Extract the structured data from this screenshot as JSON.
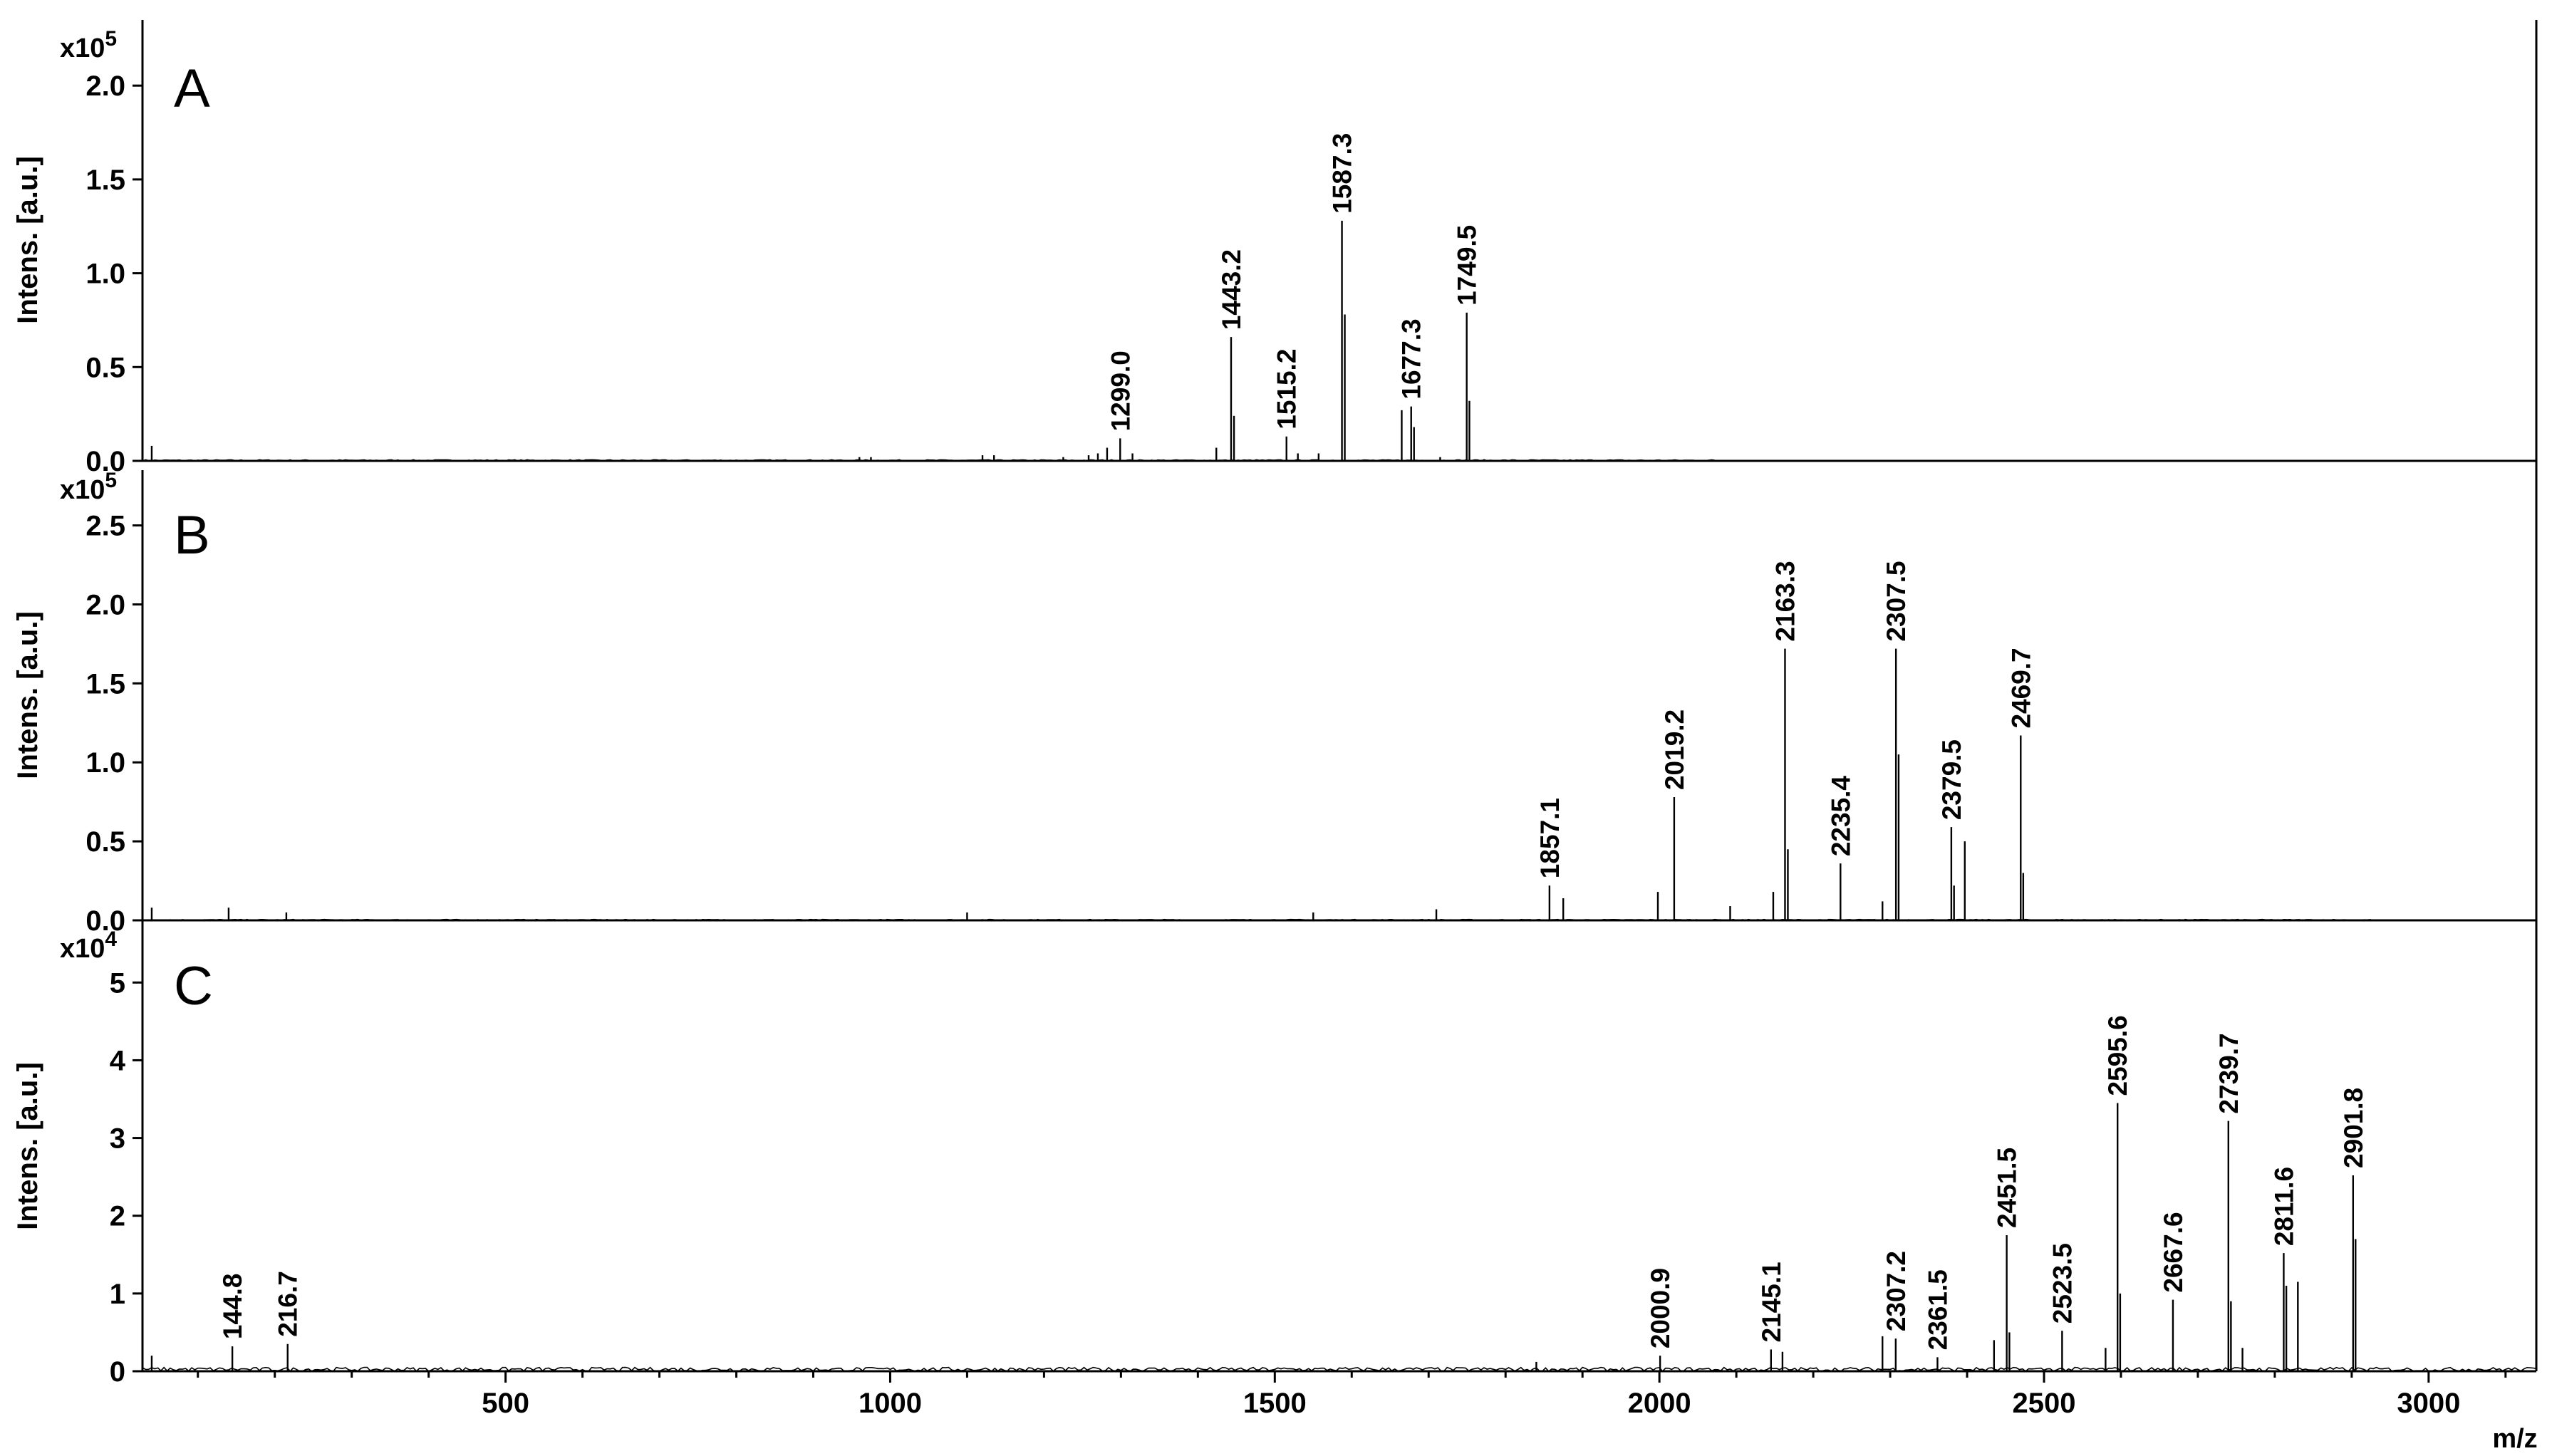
{
  "chart_data": [
    {
      "type": "line",
      "panel": "A",
      "ylabel": "Intens. [a.u.]",
      "multiplier": "x10",
      "multiplier_exp": "5",
      "yticks": [
        "0.0",
        "0.5",
        "1.0",
        "1.5",
        "2.0"
      ],
      "ytick_values": [
        0,
        0.5,
        1.0,
        1.5,
        2.0
      ],
      "ylim": [
        0,
        2.35
      ],
      "x_end": 2075,
      "peaks": [
        {
          "label": "1299.0",
          "x": 1299.0,
          "y": 0.12
        },
        {
          "label": "1443.2",
          "x": 1443.2,
          "y": 0.66
        },
        {
          "label": "1515.2",
          "x": 1515.2,
          "y": 0.13
        },
        {
          "label": "1587.3",
          "x": 1587.3,
          "y": 1.28
        },
        {
          "label": "1677.3",
          "x": 1677.3,
          "y": 0.29
        },
        {
          "label": "1749.5",
          "x": 1749.5,
          "y": 0.79
        }
      ],
      "minor_peaks": [
        {
          "x": 40,
          "y": 0.08
        },
        {
          "x": 960,
          "y": 0.02
        },
        {
          "x": 975,
          "y": 0.02
        },
        {
          "x": 1120,
          "y": 0.03
        },
        {
          "x": 1135,
          "y": 0.03
        },
        {
          "x": 1225,
          "y": 0.02
        },
        {
          "x": 1258,
          "y": 0.03
        },
        {
          "x": 1270,
          "y": 0.04
        },
        {
          "x": 1282,
          "y": 0.07
        },
        {
          "x": 1315,
          "y": 0.04
        },
        {
          "x": 1424,
          "y": 0.07
        },
        {
          "x": 1447,
          "y": 0.24
        },
        {
          "x": 1530,
          "y": 0.04
        },
        {
          "x": 1557,
          "y": 0.04
        },
        {
          "x": 1591,
          "y": 0.78
        },
        {
          "x": 1665,
          "y": 0.27
        },
        {
          "x": 1681,
          "y": 0.18
        },
        {
          "x": 1715,
          "y": 0.02
        },
        {
          "x": 1753,
          "y": 0.32
        }
      ]
    },
    {
      "type": "line",
      "panel": "B",
      "ylabel": "Intens. [a.u.]",
      "multiplier": "x10",
      "multiplier_exp": "5",
      "yticks": [
        "0.0",
        "0.5",
        "1.0",
        "1.5",
        "2.0",
        "2.5"
      ],
      "ytick_values": [
        0,
        0.5,
        1.0,
        1.5,
        2.0,
        2.5
      ],
      "ylim": [
        0,
        2.85
      ],
      "x_end": 2930,
      "peaks": [
        {
          "label": "1857.1",
          "x": 1857.1,
          "y": 0.22
        },
        {
          "label": "2019.2",
          "x": 2019.2,
          "y": 0.78
        },
        {
          "label": "2163.3",
          "x": 2163.3,
          "y": 1.72
        },
        {
          "label": "2235.4",
          "x": 2235.4,
          "y": 0.36
        },
        {
          "label": "2307.5",
          "x": 2307.5,
          "y": 1.72
        },
        {
          "label": "2379.5",
          "x": 2379.5,
          "y": 0.59
        },
        {
          "label": "2469.7",
          "x": 2469.7,
          "y": 1.17
        }
      ],
      "minor_peaks": [
        {
          "x": 40,
          "y": 0.08
        },
        {
          "x": 140,
          "y": 0.08
        },
        {
          "x": 215,
          "y": 0.05
        },
        {
          "x": 1100,
          "y": 0.05
        },
        {
          "x": 1550,
          "y": 0.05
        },
        {
          "x": 1710,
          "y": 0.07
        },
        {
          "x": 1875,
          "y": 0.14
        },
        {
          "x": 1998,
          "y": 0.18
        },
        {
          "x": 2092,
          "y": 0.09
        },
        {
          "x": 2148,
          "y": 0.18
        },
        {
          "x": 2167,
          "y": 0.45
        },
        {
          "x": 2290,
          "y": 0.12
        },
        {
          "x": 2311,
          "y": 1.05
        },
        {
          "x": 2383,
          "y": 0.22
        },
        {
          "x": 2397,
          "y": 0.5
        },
        {
          "x": 2473,
          "y": 0.3
        }
      ]
    },
    {
      "type": "line",
      "panel": "C",
      "ylabel": "Intens. [a.u.]",
      "multiplier": "x10",
      "multiplier_exp": "4",
      "yticks": [
        "0",
        "1",
        "2",
        "3",
        "4",
        "5"
      ],
      "ytick_values": [
        0,
        1,
        2,
        3,
        4,
        5
      ],
      "ylim": [
        0,
        5.8
      ],
      "x_end": 3140,
      "xlabel": "m/z",
      "xticks": [
        "500",
        "1000",
        "1500",
        "2000",
        "2500",
        "3000"
      ],
      "xtick_values": [
        500,
        1000,
        1500,
        2000,
        2500,
        3000
      ],
      "xlim": [
        28,
        3140
      ],
      "peaks": [
        {
          "label": "144.8",
          "x": 144.8,
          "y": 0.32
        },
        {
          "label": "216.7",
          "x": 216.7,
          "y": 0.35
        },
        {
          "label": "2000.9",
          "x": 2000.9,
          "y": 0.2
        },
        {
          "label": "2145.1",
          "x": 2145.1,
          "y": 0.28
        },
        {
          "label": "2307.2",
          "x": 2307.2,
          "y": 0.42
        },
        {
          "label": "2361.5",
          "x": 2361.5,
          "y": 0.18
        },
        {
          "label": "2451.5",
          "x": 2451.5,
          "y": 1.75
        },
        {
          "label": "2523.5",
          "x": 2523.5,
          "y": 0.52
        },
        {
          "label": "2595.6",
          "x": 2595.6,
          "y": 3.45
        },
        {
          "label": "2667.6",
          "x": 2667.6,
          "y": 0.92
        },
        {
          "label": "2739.7",
          "x": 2739.7,
          "y": 3.22
        },
        {
          "label": "2811.6",
          "x": 2811.6,
          "y": 1.52
        },
        {
          "label": "2901.8",
          "x": 2901.8,
          "y": 2.52
        }
      ],
      "minor_peaks": [
        {
          "x": 40,
          "y": 0.2
        },
        {
          "x": 1840,
          "y": 0.12
        },
        {
          "x": 2160,
          "y": 0.25
        },
        {
          "x": 2290,
          "y": 0.45
        },
        {
          "x": 2435,
          "y": 0.4
        },
        {
          "x": 2455,
          "y": 0.5
        },
        {
          "x": 2580,
          "y": 0.3
        },
        {
          "x": 2599,
          "y": 1.0
        },
        {
          "x": 2743,
          "y": 0.9
        },
        {
          "x": 2758,
          "y": 0.3
        },
        {
          "x": 2815,
          "y": 1.1
        },
        {
          "x": 2830,
          "y": 1.15
        },
        {
          "x": 2905,
          "y": 1.7
        }
      ]
    }
  ]
}
